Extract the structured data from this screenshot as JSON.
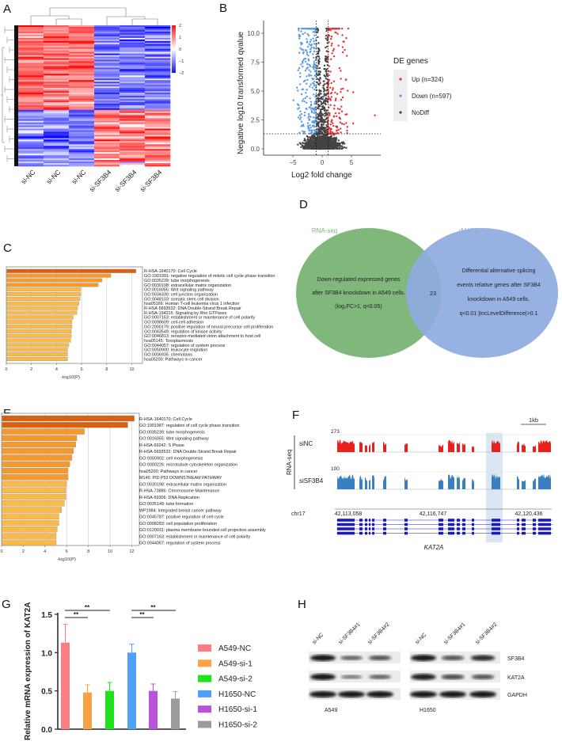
{
  "panel_labels": [
    "A",
    "B",
    "C",
    "D",
    "E",
    "F",
    "G",
    "H"
  ],
  "chart_data": [
    {
      "panel": "A",
      "type": "heatmap",
      "columns": [
        "si-NC",
        "si-NC",
        "si-NC",
        "si-SF3B4",
        "si-SF3B4",
        "si-SF3B4"
      ],
      "colorbar_ticks": [
        "2",
        "1",
        "0",
        "−1",
        "−2"
      ],
      "value_range": [
        -2,
        2
      ],
      "colors": {
        "high": "#ff2020",
        "mid": "#ffffff",
        "low": "#2020ff"
      },
      "row_clusters": [
        {
          "name": "down after knockdown",
          "fraction_of_rows": 0.6,
          "si-NC": 1.1,
          "si-SF3B4": -1.1
        },
        {
          "name": "up after knockdown",
          "fraction_of_rows": 0.4,
          "si-NC": -0.9,
          "si-SF3B4": 1.0
        }
      ]
    },
    {
      "panel": "B",
      "type": "scatter",
      "xlabel": "Log2 fold change",
      "ylabel": "Negative log10 transformed qvalue",
      "xticks": [
        "−5",
        "0",
        "5"
      ],
      "xtick_values": [
        -5,
        0,
        5
      ],
      "yticks": [
        "0.0",
        "2.5",
        "5.0",
        "7.5",
        "10.0"
      ],
      "ytick_values": [
        0,
        2.5,
        5,
        7.5,
        10
      ],
      "xlim": [
        -9.5,
        9.5
      ],
      "ylim": [
        -0.5,
        10.8
      ],
      "thresholds": {
        "log2fc": [
          -1,
          1
        ],
        "qvalue_line": 1.3
      },
      "legend_title": "DE genes",
      "legend_position": "right",
      "series": [
        {
          "name": "Up (n=324)",
          "count": 324,
          "color": "#e8322e"
        },
        {
          "name": "Down (n=597)",
          "count": 597,
          "color": "#5b9be0"
        },
        {
          "name": "NoDiff",
          "color": "#444444"
        }
      ]
    },
    {
      "panel": "C",
      "type": "bar",
      "orientation": "horizontal",
      "xlabel": "-log10(P)",
      "xticks": [
        "0",
        "2",
        "4",
        "6",
        "8",
        "10"
      ],
      "xlim": [
        0,
        11
      ],
      "categories": [
        "R-HSA-1640170: Cell Cycle",
        "GO:1901991: negative regulation of mitotic cell cycle phase transition",
        "GO:0035239: tube morphogenesis",
        "GO:0030198: extracellular matrix organization",
        "GO:0016055: Wnt signaling pathway",
        "GO:0034330: cell junction organization",
        "GO:0048103: somatic stem cell division",
        "hsa05166: Human T-cell leukemia virus 1 infection",
        "R-HSA-5693532: DNA Double-Strand Break Repair",
        "R-HSA-194315: Signaling by Rho GTPases",
        "GO:0007163: establishment or maintenance of cell polarity",
        "GO:0098609: cell-cell adhesion",
        "GO:2000179: positive regulation of neural precursor cell proliferation",
        "GO:0043549: regulation of kinase activity",
        "GO:0046813: receptor-mediated virion attachment to host cell",
        "hsa05145: Toxoplasmosis",
        "GO:0044057: regulation of system process",
        "GO:0050900: leukocyte migration",
        "GO:0006935: chemotaxis",
        "hsa05200: Pathways in cancer"
      ],
      "values": [
        10.3,
        8.3,
        7.6,
        7.3,
        5.9,
        5.9,
        5.85,
        5.75,
        5.65,
        5.6,
        5.3,
        5.2,
        5.2,
        5.15,
        5.15,
        5.1,
        4.95,
        4.85,
        4.85,
        4.85
      ],
      "colors": [
        "#d9600e",
        "#f59a2a",
        "#f59a2a",
        "#f59a2a",
        "#fbb949",
        "#fbb949",
        "#fbb949",
        "#fbb949",
        "#fbb949",
        "#fbb949",
        "#fbb949",
        "#fbb949",
        "#fbb949",
        "#fbb949",
        "#fbb949",
        "#fbb949",
        "#fbb949",
        "#fbb949",
        "#fbb949",
        "#fbb949"
      ]
    },
    {
      "panel": "D",
      "type": "venn",
      "sets": [
        {
          "name": "RNA-seq",
          "color": "#7fb87a",
          "description": [
            "Down-regulated expressed genes",
            "after SF3B4 knockdown in A549 cells.",
            "(log₂FC>1, q<0.05)"
          ]
        },
        {
          "name": "rMATS",
          "color": "#8eaadf",
          "description": [
            "Differential alternative splicing",
            "events relative genes after SF3B4",
            "knockdown in A549 cells.",
            "q<0.01 |IncLevelDifference|>0.1"
          ]
        }
      ],
      "overlap": "23"
    },
    {
      "panel": "E",
      "type": "bar",
      "orientation": "horizontal",
      "xlabel": "-log10(P)",
      "xticks": [
        "0",
        "2",
        "4",
        "6",
        "8",
        "10",
        "12"
      ],
      "xlim": [
        0,
        12.6
      ],
      "categories": [
        "R-HSA-1640170: Cell Cycle",
        "GO:1901987: regulation of cell cycle phase transition",
        "GO:0035239: tube morphogenesis",
        "GO:0016055: Wnt signaling pathway",
        "R-HSA-69242: S Phase",
        "R-HSA-5693532: DNA Double-Strand Break Repair",
        "GO:0000902: cell morphogenesis",
        "GO:0000226: microtubule cytoskeleton organization",
        "hsa05200: Pathways in cancer",
        "M145: PID P53 DOWNSTREAM PATHWAY",
        "GO:0030198: extracellular matrix organization",
        "R-HSA-73886: Chromosome Maintenance",
        "R-HSA-69306: DNA Replication",
        "GO:0035148: tube formation",
        "WP1984: Integrated breast cancer pathway",
        "GO:0045787: positive regulation of cell cycle",
        "GO:0008283: cell population proliferation",
        "GO:0120031: plasma membrane bounded cell projection assembly",
        "GO:0007163: establishment or maintenance of cell polarity",
        "GO:0044057: regulation of system process"
      ],
      "values": [
        12.2,
        11.6,
        7.6,
        6.9,
        6.8,
        6.6,
        6.45,
        6.25,
        6.1,
        6.1,
        5.95,
        5.9,
        5.9,
        5.75,
        5.5,
        5.25,
        5.25,
        5.1,
        5.0,
        5.0
      ],
      "colors": [
        "#d9600e",
        "#d9600e",
        "#f59a2a",
        "#f59a2a",
        "#f59a2a",
        "#f59a2a",
        "#f59a2a",
        "#f59a2a",
        "#f59a2a",
        "#f59a2a",
        "#fbb949",
        "#fbb949",
        "#fbb949",
        "#fbb949",
        "#fbb949",
        "#fbb949",
        "#fbb949",
        "#fbb949",
        "#fbb949",
        "#fbb949"
      ]
    },
    {
      "panel": "F",
      "type": "area",
      "group_label": "RNA-seq",
      "scale_bar": "1kb",
      "tracks": [
        {
          "name": "siNC",
          "max": "273",
          "color": "#e8201e"
        },
        {
          "name": "siSF3B4",
          "max": "100",
          "color": "#3a7fbf"
        }
      ],
      "chromosome": "chr17",
      "coordinates": [
        "42,113,058",
        "42,116,747",
        "42,120,436"
      ],
      "gene": "KAT2A",
      "gene_color": "#1a1ab8",
      "highlight_color": "#dbe6f4"
    },
    {
      "panel": "G",
      "type": "bar",
      "ylabel": "Relative  mRNA expression of KAT2A",
      "yticks": [
        "0.0",
        "0.5",
        "1.0",
        "1.5"
      ],
      "ytick_values": [
        0,
        0.5,
        1.0,
        1.5
      ],
      "ylim": [
        0,
        1.5
      ],
      "categories": [
        "A549-NC",
        "A549-si-1",
        "A549-si-2",
        "H1650-NC",
        "H1650-si-1",
        "H1650-si-2"
      ],
      "values": [
        1.13,
        0.48,
        0.5,
        1.0,
        0.5,
        0.4
      ],
      "errors": [
        0.24,
        0.1,
        0.11,
        0.11,
        0.09,
        0.09
      ],
      "colors": [
        "#fb7f81",
        "#fba044",
        "#1de41d",
        "#4fa1f7",
        "#b653d8",
        "#9c9c9c"
      ],
      "legend_position": "right",
      "significance": [
        {
          "from": 0,
          "to": 1,
          "label": "**"
        },
        {
          "from": 0,
          "to": 2,
          "label": "**"
        },
        {
          "from": 3,
          "to": 4,
          "label": "**"
        },
        {
          "from": 3,
          "to": 5,
          "label": "**"
        }
      ]
    },
    {
      "panel": "H",
      "type": "blot",
      "lanes": [
        "si-NC",
        "si-SF3B4#1",
        "si-SF3B4#2",
        "si-NC",
        "si-SF3B4#1",
        "si-SF3B4#2"
      ],
      "cell_lines": [
        "A549",
        "H1650"
      ],
      "proteins": [
        "SF3B4",
        "KAT2A",
        "GAPDH"
      ],
      "band_intensity": [
        [
          1.0,
          0.5,
          0.6,
          1.0,
          0.6,
          0.85
        ],
        [
          1.0,
          0.35,
          0.5,
          0.95,
          0.65,
          0.6
        ],
        [
          1.0,
          1.0,
          1.0,
          1.0,
          1.0,
          1.0
        ]
      ]
    }
  ]
}
